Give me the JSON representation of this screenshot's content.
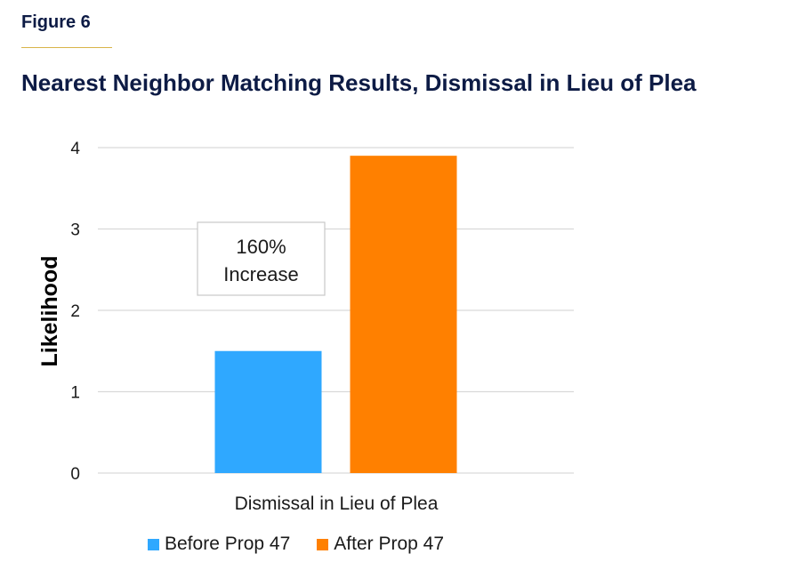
{
  "header": {
    "figure_label": "Figure 6",
    "title": "Nearest Neighbor Matching Results, Dismissal in Lieu of Plea"
  },
  "colors": {
    "before": "#2fa8ff",
    "after": "#ff8000",
    "heading": "#0d1b45",
    "accent_rule": "#d9b44a",
    "grid": "#d9d9d9"
  },
  "chart_data": {
    "type": "bar",
    "title": "Nearest Neighbor Matching Results, Dismissal in Lieu of Plea",
    "categories": [
      "Dismissal in Lieu of Plea"
    ],
    "series": [
      {
        "name": "Before Prop 47",
        "values": [
          1.5
        ]
      },
      {
        "name": "After Prop 47",
        "values": [
          3.9
        ]
      }
    ],
    "xlabel": "",
    "ylabel": "Likelihood",
    "ylim": [
      0,
      4
    ],
    "yticks": [
      "0",
      "1",
      "2",
      "3",
      "4"
    ],
    "grid": true,
    "legend_position": "bottom",
    "annotation": {
      "line1": "160%",
      "line2": "Increase"
    }
  }
}
